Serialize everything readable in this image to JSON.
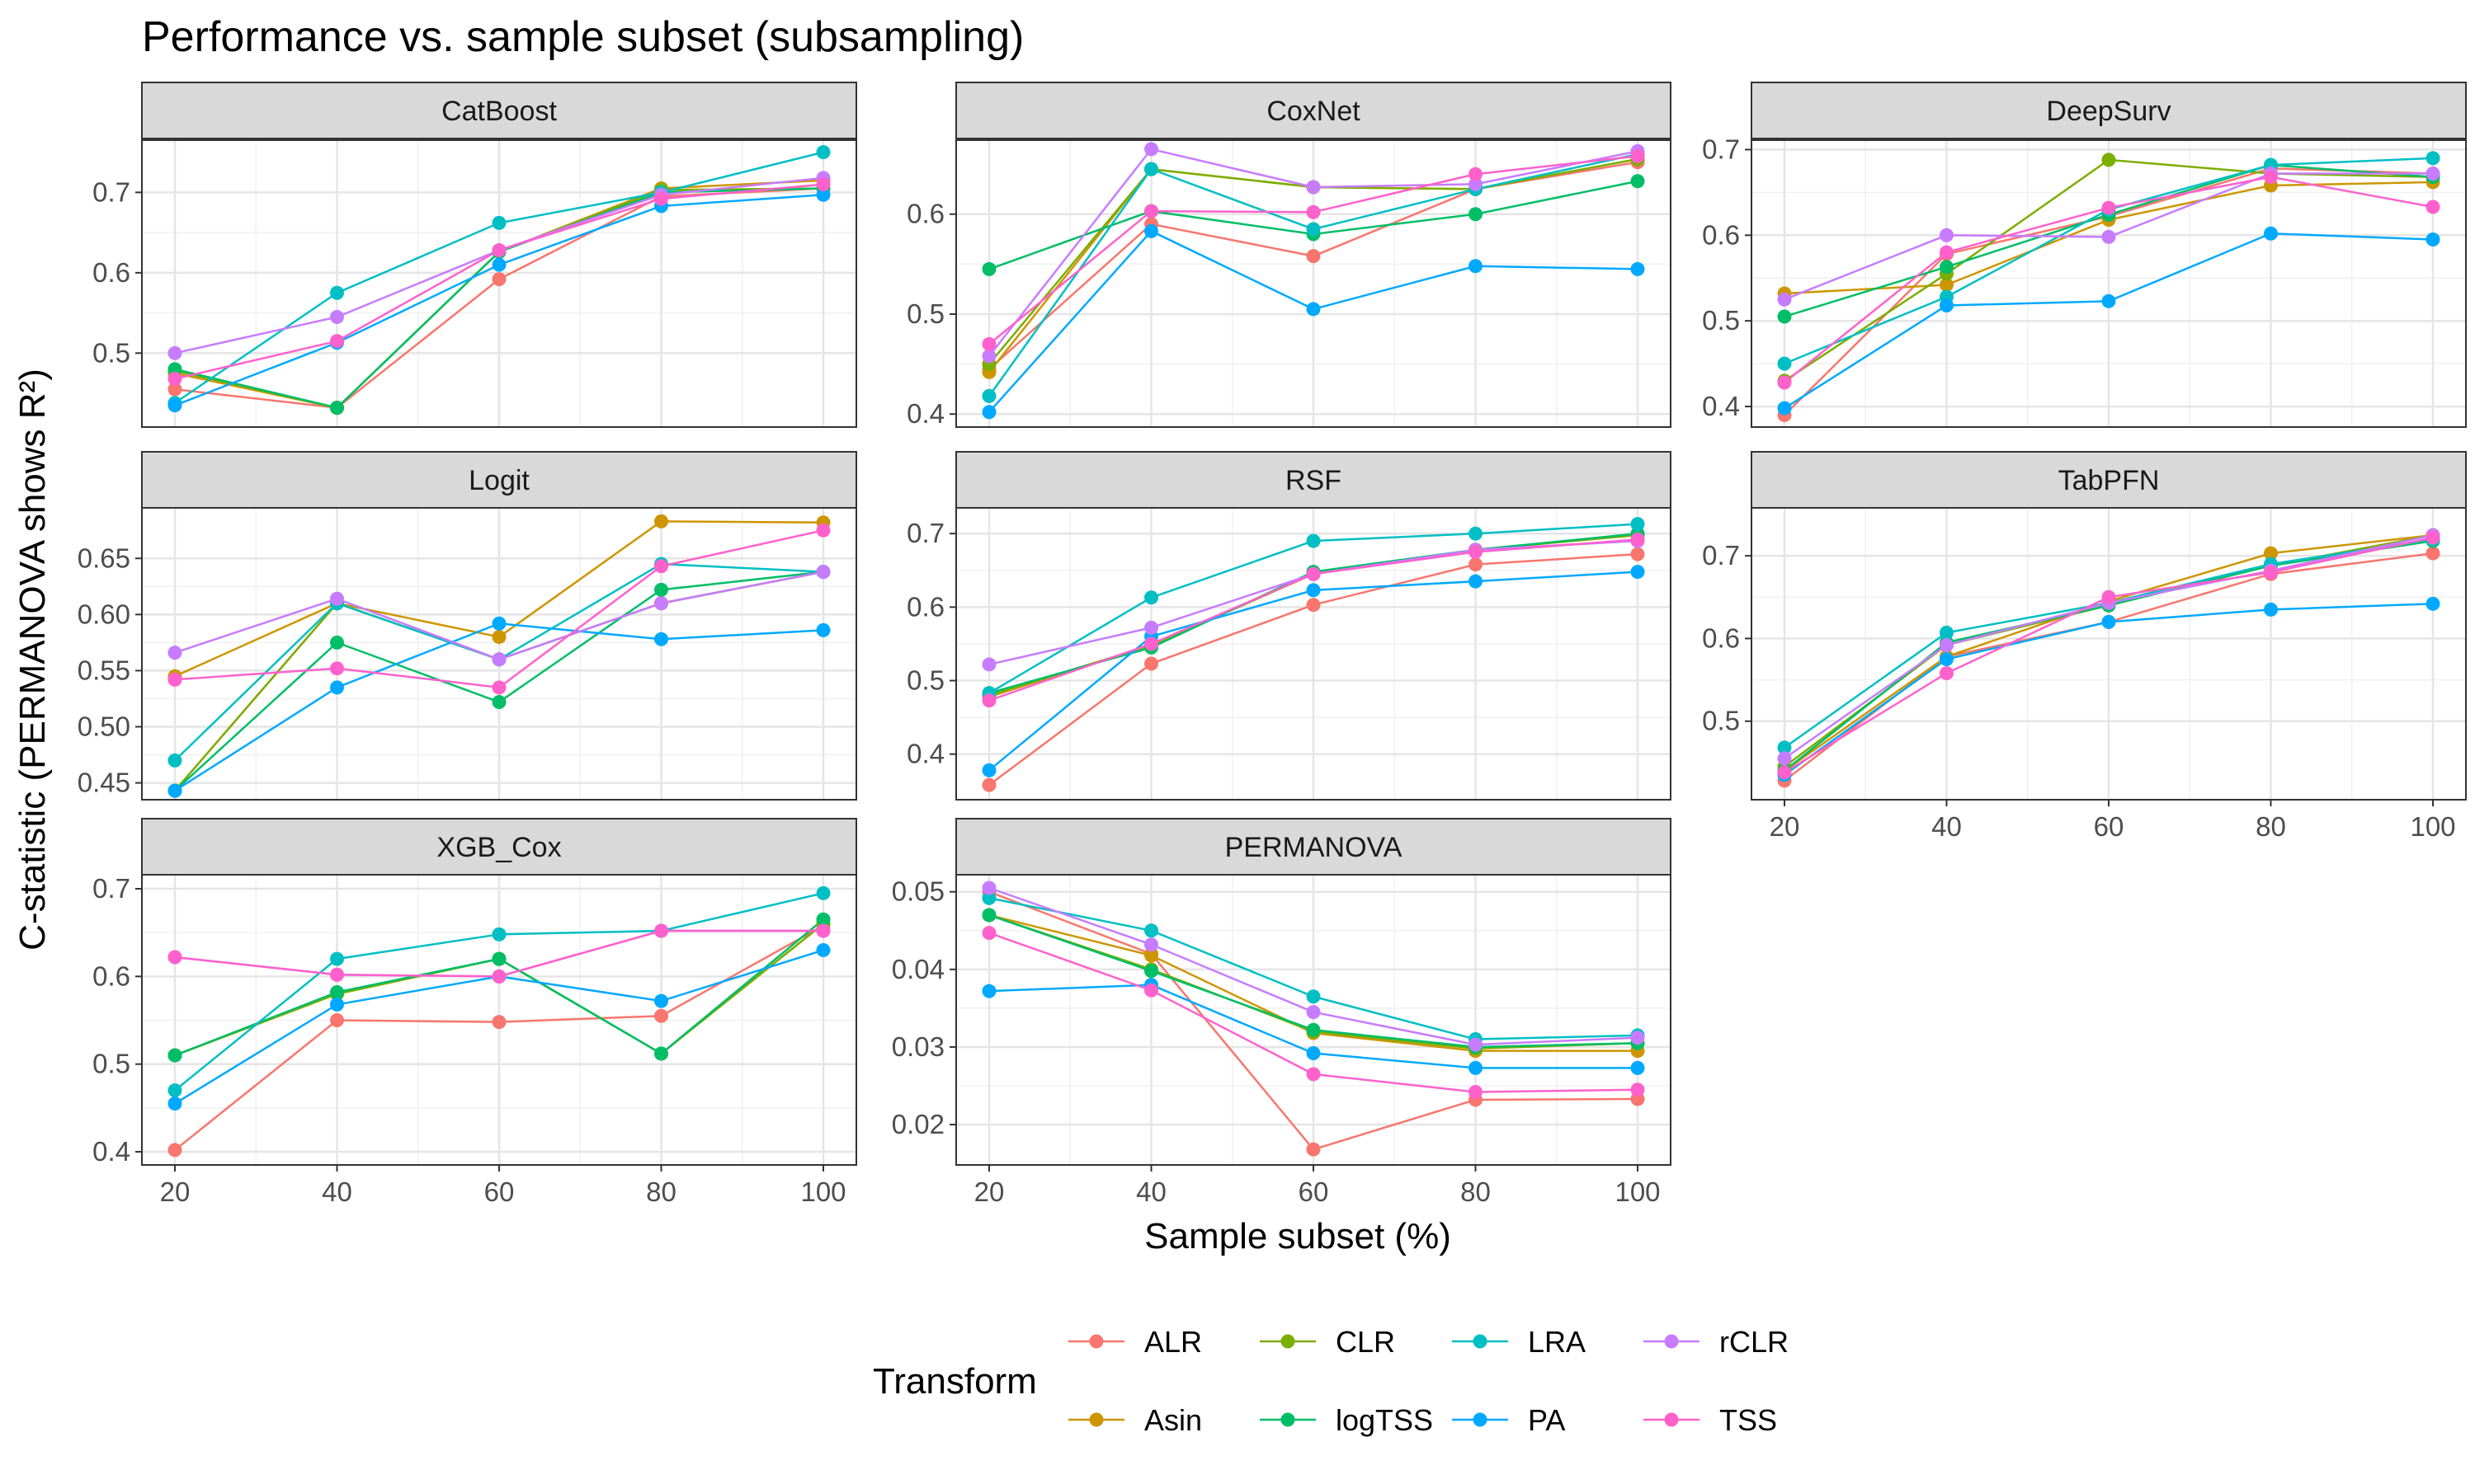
{
  "title": "Performance vs. sample subset (subsampling)",
  "xlabel": "Sample subset (%)",
  "ylabel": "C-statistic (PERMANOVA shows R²)",
  "legend": {
    "title": "Transform",
    "position": "bottom",
    "entries": [
      "ALR",
      "Asin",
      "CLR",
      "logTSS",
      "LRA",
      "PA",
      "rCLR",
      "TSS"
    ]
  },
  "colors": {
    "ALR": "#F8766D",
    "Asin": "#CD9600",
    "CLR": "#7CAE00",
    "logTSS": "#00BE67",
    "LRA": "#00BFC4",
    "PA": "#00A9FF",
    "rCLR": "#C77CFF",
    "TSS": "#FF61CC"
  },
  "chart_data": {
    "type": "line",
    "x": [
      20,
      40,
      60,
      80,
      100
    ],
    "x_ticks": [
      "20",
      "40",
      "60",
      "80",
      "100"
    ],
    "facet_order": [
      "CatBoost",
      "CoxNet",
      "DeepSurv",
      "Logit",
      "RSF",
      "TabPFN",
      "XGB_Cox",
      "PERMANOVA"
    ],
    "grid": true,
    "facets": [
      {
        "name": "CatBoost",
        "ylim": [
          0.408,
          0.765
        ],
        "yticks": [
          0.5,
          0.6,
          0.7
        ],
        "ytick_labels": [
          "0.5",
          "0.6",
          "0.7"
        ],
        "series": [
          {
            "name": "ALR",
            "values": [
              0.455,
              0.432,
              0.592,
              0.695,
              0.705
            ]
          },
          {
            "name": "Asin",
            "values": [
              0.475,
              0.432,
              0.626,
              0.705,
              0.715
            ]
          },
          {
            "name": "CLR",
            "values": [
              0.478,
              0.432,
              0.626,
              0.703,
              0.705
            ]
          },
          {
            "name": "logTSS",
            "values": [
              0.48,
              0.432,
              0.626,
              0.7,
              0.705
            ]
          },
          {
            "name": "LRA",
            "values": [
              0.438,
              0.575,
              0.662,
              0.7,
              0.75
            ]
          },
          {
            "name": "PA",
            "values": [
              0.435,
              0.513,
              0.61,
              0.683,
              0.697
            ]
          },
          {
            "name": "rCLR",
            "values": [
              0.5,
              0.545,
              0.628,
              0.697,
              0.718
            ]
          },
          {
            "name": "TSS",
            "values": [
              0.468,
              0.515,
              0.628,
              0.692,
              0.71
            ]
          }
        ]
      },
      {
        "name": "CoxNet",
        "ylim": [
          0.387,
          0.674
        ],
        "yticks": [
          0.4,
          0.5,
          0.6
        ],
        "ytick_labels": [
          "0.4",
          "0.5",
          "0.6"
        ],
        "series": [
          {
            "name": "ALR",
            "values": [
              0.445,
              0.59,
              0.558,
              0.625,
              0.652
            ]
          },
          {
            "name": "Asin",
            "values": [
              0.442,
              0.645,
              0.627,
              0.625,
              0.655
            ]
          },
          {
            "name": "CLR",
            "values": [
              0.45,
              0.645,
              0.627,
              0.625,
              0.655
            ]
          },
          {
            "name": "logTSS",
            "values": [
              0.545,
              0.603,
              0.58,
              0.6,
              0.633
            ]
          },
          {
            "name": "LRA",
            "values": [
              0.418,
              0.645,
              0.585,
              0.625,
              0.66
            ]
          },
          {
            "name": "PA",
            "values": [
              0.402,
              0.583,
              0.505,
              0.548,
              0.545
            ]
          },
          {
            "name": "rCLR",
            "values": [
              0.458,
              0.665,
              0.627,
              0.63,
              0.663
            ]
          },
          {
            "name": "TSS",
            "values": [
              0.47,
              0.603,
              0.602,
              0.64,
              0.658
            ]
          }
        ]
      },
      {
        "name": "DeepSurv",
        "ylim": [
          0.376,
          0.711
        ],
        "yticks": [
          0.4,
          0.5,
          0.6,
          0.7
        ],
        "ytick_labels": [
          "0.4",
          "0.5",
          "0.6",
          "0.7"
        ],
        "series": [
          {
            "name": "ALR",
            "values": [
              0.39,
              0.578,
              0.622,
              0.678,
              0.672
            ]
          },
          {
            "name": "Asin",
            "values": [
              0.532,
              0.542,
              0.618,
              0.658,
              0.662
            ]
          },
          {
            "name": "CLR",
            "values": [
              0.43,
              0.555,
              0.688,
              0.672,
              0.668
            ]
          },
          {
            "name": "logTSS",
            "values": [
              0.505,
              0.563,
              0.624,
              0.682,
              0.668
            ]
          },
          {
            "name": "LRA",
            "values": [
              0.45,
              0.528,
              0.63,
              0.682,
              0.69
            ]
          },
          {
            "name": "PA",
            "values": [
              0.398,
              0.518,
              0.523,
              0.602,
              0.595
            ]
          },
          {
            "name": "rCLR",
            "values": [
              0.525,
              0.6,
              0.598,
              0.672,
              0.672
            ]
          },
          {
            "name": "TSS",
            "values": [
              0.428,
              0.58,
              0.632,
              0.668,
              0.633
            ]
          }
        ]
      },
      {
        "name": "Logit",
        "ylim": [
          0.435,
          0.695
        ],
        "yticks": [
          0.45,
          0.5,
          0.55,
          0.6,
          0.65
        ],
        "ytick_labels": [
          "0.45",
          "0.50",
          "0.55",
          "0.60",
          "0.65"
        ],
        "series": [
          {
            "name": "ALR",
            "values": [
              0.443,
              0.61,
              0.56,
              0.61,
              0.638
            ]
          },
          {
            "name": "Asin",
            "values": [
              0.545,
              0.61,
              0.58,
              0.683,
              0.682
            ]
          },
          {
            "name": "CLR",
            "values": [
              0.443,
              0.61,
              0.56,
              0.61,
              0.638
            ]
          },
          {
            "name": "logTSS",
            "values": [
              0.443,
              0.575,
              0.522,
              0.622,
              0.638
            ]
          },
          {
            "name": "LRA",
            "values": [
              0.47,
              0.61,
              0.56,
              0.645,
              0.638
            ]
          },
          {
            "name": "PA",
            "values": [
              0.443,
              0.535,
              0.592,
              0.578,
              0.586
            ]
          },
          {
            "name": "rCLR",
            "values": [
              0.566,
              0.614,
              0.56,
              0.61,
              0.638
            ]
          },
          {
            "name": "TSS",
            "values": [
              0.542,
              0.552,
              0.535,
              0.643,
              0.675
            ]
          }
        ]
      },
      {
        "name": "RSF",
        "ylim": [
          0.338,
          0.735
        ],
        "yticks": [
          0.4,
          0.5,
          0.6,
          0.7
        ],
        "ytick_labels": [
          "0.4",
          "0.5",
          "0.6",
          "0.7"
        ],
        "series": [
          {
            "name": "ALR",
            "values": [
              0.358,
              0.523,
              0.603,
              0.658,
              0.672
            ]
          },
          {
            "name": "Asin",
            "values": [
              0.478,
              0.548,
              0.645,
              0.678,
              0.698
            ]
          },
          {
            "name": "CLR",
            "values": [
              0.48,
              0.548,
              0.645,
              0.678,
              0.698
            ]
          },
          {
            "name": "logTSS",
            "values": [
              0.483,
              0.545,
              0.648,
              0.678,
              0.7
            ]
          },
          {
            "name": "LRA",
            "values": [
              0.483,
              0.613,
              0.69,
              0.7,
              0.713
            ]
          },
          {
            "name": "PA",
            "values": [
              0.378,
              0.56,
              0.623,
              0.635,
              0.648
            ]
          },
          {
            "name": "rCLR",
            "values": [
              0.522,
              0.572,
              0.645,
              0.678,
              0.69
            ]
          },
          {
            "name": "TSS",
            "values": [
              0.473,
              0.55,
              0.645,
              0.675,
              0.692
            ]
          }
        ]
      },
      {
        "name": "TabPFN",
        "ylim": [
          0.405,
          0.758
        ],
        "yticks": [
          0.5,
          0.6,
          0.7
        ],
        "ytick_labels": [
          "0.5",
          "0.6",
          "0.7"
        ],
        "series": [
          {
            "name": "ALR",
            "values": [
              0.428,
              0.578,
              0.62,
              0.678,
              0.703
            ]
          },
          {
            "name": "Asin",
            "values": [
              0.44,
              0.578,
              0.645,
              0.703,
              0.725
            ]
          },
          {
            "name": "CLR",
            "values": [
              0.445,
              0.592,
              0.64,
              0.688,
              0.725
            ]
          },
          {
            "name": "logTSS",
            "values": [
              0.44,
              0.595,
              0.64,
              0.688,
              0.718
            ]
          },
          {
            "name": "LRA",
            "values": [
              0.468,
              0.607,
              0.643,
              0.69,
              0.72
            ]
          },
          {
            "name": "PA",
            "values": [
              0.435,
              0.575,
              0.62,
              0.635,
              0.642
            ]
          },
          {
            "name": "rCLR",
            "values": [
              0.455,
              0.592,
              0.643,
              0.682,
              0.725
            ]
          },
          {
            "name": "TSS",
            "values": [
              0.438,
              0.558,
              0.65,
              0.68,
              0.722
            ]
          }
        ]
      },
      {
        "name": "XGB_Cox",
        "ylim": [
          0.385,
          0.716
        ],
        "yticks": [
          0.4,
          0.5,
          0.6,
          0.7
        ],
        "ytick_labels": [
          "0.4",
          "0.5",
          "0.6",
          "0.7"
        ],
        "series": [
          {
            "name": "ALR",
            "values": [
              0.402,
              0.55,
              0.548,
              0.555,
              0.658
            ]
          },
          {
            "name": "Asin",
            "values": [
              0.51,
              0.58,
              0.62,
              0.512,
              0.66
            ]
          },
          {
            "name": "CLR",
            "values": [
              0.51,
              0.58,
              0.62,
              0.512,
              0.66
            ]
          },
          {
            "name": "logTSS",
            "values": [
              0.51,
              0.582,
              0.62,
              0.512,
              0.665
            ]
          },
          {
            "name": "LRA",
            "values": [
              0.47,
              0.62,
              0.648,
              0.652,
              0.695
            ]
          },
          {
            "name": "PA",
            "values": [
              0.455,
              0.568,
              0.6,
              0.572,
              0.63
            ]
          },
          {
            "name": "rCLR",
            "values": [
              0.622,
              0.602,
              0.6,
              0.652,
              0.652
            ]
          },
          {
            "name": "TSS",
            "values": [
              0.622,
              0.602,
              0.6,
              0.652,
              0.652
            ]
          }
        ]
      },
      {
        "name": "PERMANOVA",
        "ylim": [
          0.0148,
          0.0522
        ],
        "yticks": [
          0.02,
          0.03,
          0.04,
          0.05
        ],
        "ytick_labels": [
          "0.02",
          "0.03",
          "0.04",
          "0.05"
        ],
        "series": [
          {
            "name": "ALR",
            "values": [
              0.05,
              0.042,
              0.0168,
              0.0232,
              0.0233
            ]
          },
          {
            "name": "Asin",
            "values": [
              0.047,
              0.0418,
              0.0318,
              0.0295,
              0.0295
            ]
          },
          {
            "name": "CLR",
            "values": [
              0.047,
              0.04,
              0.032,
              0.0298,
              0.0305
            ]
          },
          {
            "name": "logTSS",
            "values": [
              0.047,
              0.0398,
              0.0322,
              0.03,
              0.0305
            ]
          },
          {
            "name": "LRA",
            "values": [
              0.0492,
              0.045,
              0.0365,
              0.031,
              0.0315
            ]
          },
          {
            "name": "PA",
            "values": [
              0.0372,
              0.038,
              0.0292,
              0.0273,
              0.0273
            ]
          },
          {
            "name": "rCLR",
            "values": [
              0.0505,
              0.0432,
              0.0345,
              0.0303,
              0.0312
            ]
          },
          {
            "name": "TSS",
            "values": [
              0.0447,
              0.0373,
              0.0265,
              0.0242,
              0.0245
            ]
          }
        ]
      }
    ]
  }
}
